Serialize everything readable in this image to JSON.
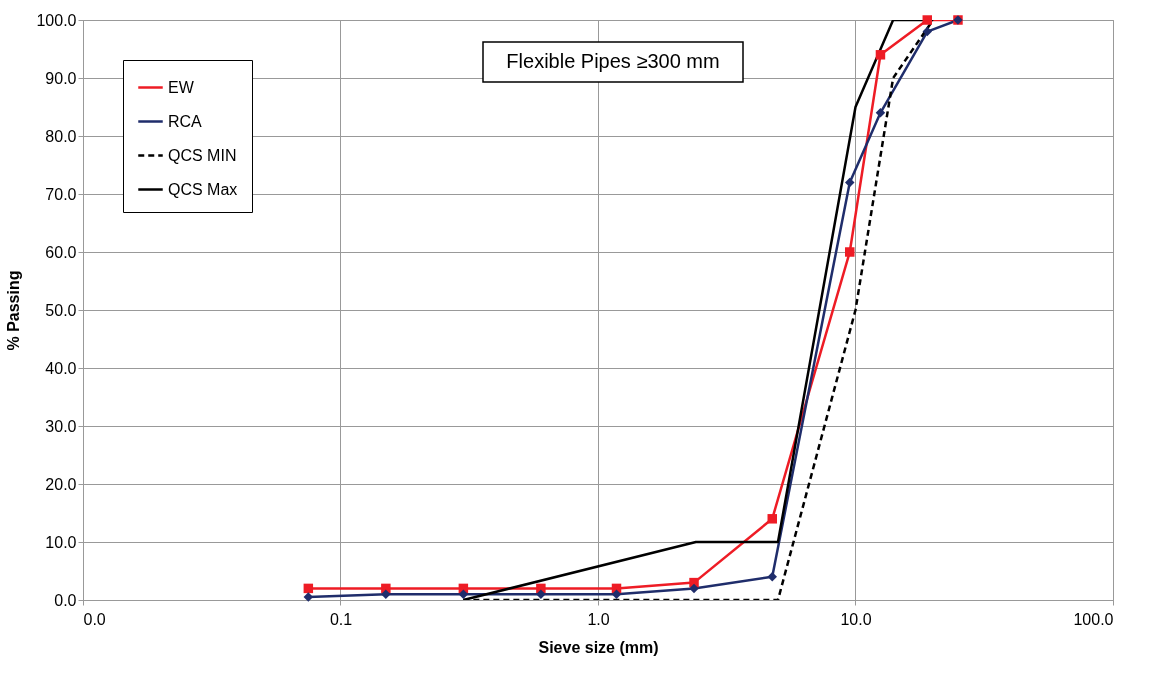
{
  "chart_data": {
    "type": "line",
    "xlabel": "Sieve size (mm)",
    "ylabel": "% Passing",
    "annotations": [
      "Flexible Pipes ≥300 mm"
    ],
    "log": "x",
    "grid": true,
    "legend": "top left",
    "xlim": [
      0.01,
      100
    ],
    "xticks": [
      {
        "value": 0.01,
        "label": "0.0"
      },
      0.1,
      {
        "value": 1,
        "label": "1.0"
      },
      {
        "value": 10,
        "label": "10.0"
      },
      {
        "value": 100,
        "label": "100.0"
      }
    ],
    "ylim": [
      0,
      100
    ],
    "yticks": [
      {
        "value": 0,
        "label": "0.0"
      },
      {
        "value": 10,
        "label": "10.0"
      },
      {
        "value": 20,
        "label": "20.0"
      },
      {
        "value": 30,
        "label": "30.0"
      },
      {
        "value": 40,
        "label": "40.0"
      },
      {
        "value": 50,
        "label": "50.0"
      },
      {
        "value": 60,
        "label": "60.0"
      },
      {
        "value": 70,
        "label": "70.0"
      },
      {
        "value": 80,
        "label": "80.0"
      },
      {
        "value": 90,
        "label": "90.0"
      },
      {
        "value": 100,
        "label": "100.0"
      }
    ],
    "series": [
      {
        "name": "EW",
        "color": "#ee1c25",
        "marker": "square",
        "line_style": "solid",
        "x": [
          0.075,
          0.15,
          0.3,
          0.6,
          1.18,
          2.36,
          4.75,
          9.5,
          12.5,
          19,
          25
        ],
        "values": [
          2,
          2,
          2,
          2,
          2,
          3,
          14,
          60,
          94,
          100,
          100
        ]
      },
      {
        "name": "RCA",
        "color": "#1f2d6b",
        "marker": "diamond",
        "line_style": "solid",
        "x": [
          0.075,
          0.15,
          0.3,
          0.6,
          1.18,
          2.36,
          4.75,
          9.5,
          12.5,
          19,
          25
        ],
        "values": [
          0.5,
          1,
          1,
          1,
          1,
          2,
          4,
          72,
          84,
          98,
          100
        ]
      },
      {
        "name": "QCS MIN",
        "color": "#000000",
        "marker": "none",
        "line_style": "dashed",
        "x": [
          0.3,
          5,
          10,
          14,
          20
        ],
        "values": [
          0,
          0,
          50,
          90,
          100
        ]
      },
      {
        "name": "QCS Max",
        "color": "#000000",
        "marker": "none",
        "line_style": "solid",
        "x": [
          0.3,
          2.4,
          5,
          10,
          14,
          20
        ],
        "values": [
          0,
          10,
          10,
          85,
          100,
          100
        ]
      }
    ]
  }
}
